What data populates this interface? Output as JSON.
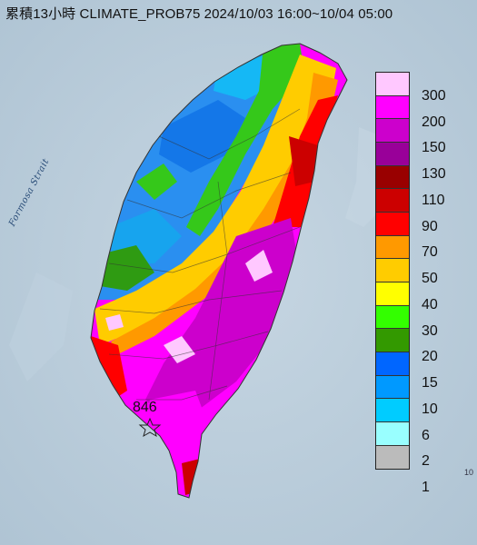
{
  "title": "累積13小時 CLIMATE_PROB75 2024/10/03 16:00~10/04 05:00",
  "strait_label": "Formosa Strait",
  "peak_value": "846",
  "edge_label": "10",
  "legend": [
    {
      "label": "300",
      "color": "#ffc8ff"
    },
    {
      "label": "200",
      "color": "#ff00ff"
    },
    {
      "label": "150",
      "color": "#cc00cc"
    },
    {
      "label": "130",
      "color": "#990099"
    },
    {
      "label": "110",
      "color": "#990000"
    },
    {
      "label": "90",
      "color": "#cc0000"
    },
    {
      "label": "70",
      "color": "#ff0000"
    },
    {
      "label": "50",
      "color": "#ff9900"
    },
    {
      "label": "40",
      "color": "#ffcc00"
    },
    {
      "label": "30",
      "color": "#ffff00"
    },
    {
      "label": "20",
      "color": "#33ff00"
    },
    {
      "label": "15",
      "color": "#339900"
    },
    {
      "label": "10",
      "color": "#0066ff"
    },
    {
      "label": "6",
      "color": "#0099ff"
    },
    {
      "label": "2",
      "color": "#00ccff"
    },
    {
      "label": "1",
      "color": "#99ffff"
    },
    {
      "label": "",
      "color": "#bbbbbb"
    }
  ]
}
